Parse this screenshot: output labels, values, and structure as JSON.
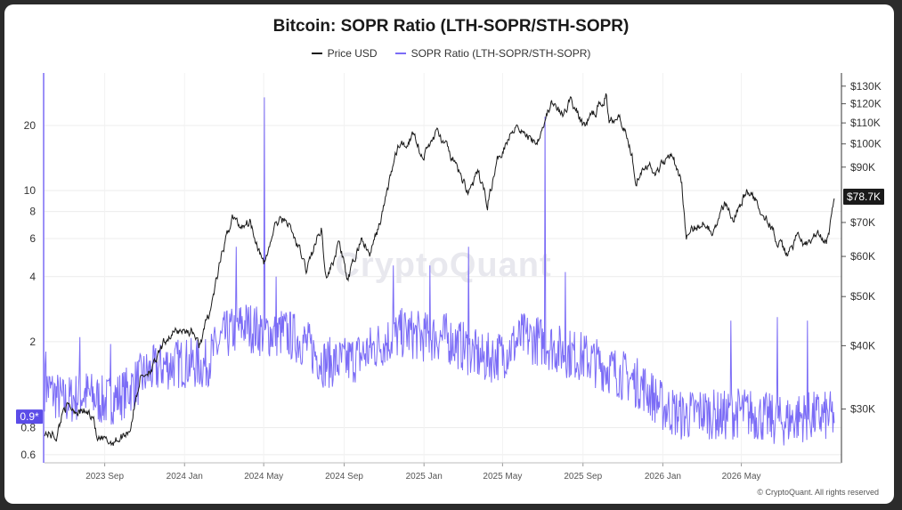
{
  "chart_data": {
    "type": "line",
    "title": "Bitcoin: SOPR Ratio (LTH-SOPR/STH-SOPR)",
    "legend": [
      "Price USD",
      "SOPR Ratio (LTH-SOPR/STH-SOPR)"
    ],
    "legend_position": "top-center",
    "grid": true,
    "left_axis": {
      "scale": "log",
      "range": [
        0.55,
        35
      ],
      "ticks": [
        "0.6",
        "0.8",
        "2",
        "4",
        "6",
        "8",
        "10",
        "20"
      ],
      "tick_values": [
        0.6,
        0.8,
        2,
        4,
        6,
        8,
        10,
        20
      ],
      "current_label": "0.9*",
      "current_value": 0.9
    },
    "right_axis": {
      "scale": "log",
      "range": [
        23500,
        138000
      ],
      "ticks": [
        "$30K",
        "$40K",
        "$50K",
        "$60K",
        "$70K",
        "$90K",
        "$100K",
        "$110K",
        "$120K",
        "$130K"
      ],
      "tick_values": [
        30000,
        40000,
        50000,
        60000,
        70000,
        90000,
        100000,
        110000,
        120000,
        130000
      ],
      "current_label": "$78.7K",
      "current_value": 78700
    },
    "x_axis": {
      "range": [
        "2023-06-01",
        "2026-10-01"
      ],
      "ticks": [
        "2023 Sep",
        "2024 Jan",
        "2024 May",
        "2024 Sep",
        "2025 Jan",
        "2025 May",
        "2025 Sep",
        "2026 Jan",
        "2026 May"
      ],
      "tick_dates": [
        "2023-09-01",
        "2024-01-01",
        "2024-05-01",
        "2024-09-01",
        "2025-01-01",
        "2025-05-01",
        "2025-09-01",
        "2026-01-01",
        "2026-05-01"
      ]
    },
    "series": [
      {
        "name": "Price USD",
        "axis": "right",
        "color": "#1a1a1a",
        "points": [
          [
            "2023-06-01",
            27000
          ],
          [
            "2023-06-20",
            26500
          ],
          [
            "2023-07-01",
            30500
          ],
          [
            "2023-07-20",
            29900
          ],
          [
            "2023-08-15",
            29200
          ],
          [
            "2023-08-20",
            26100
          ],
          [
            "2023-09-10",
            25800
          ],
          [
            "2023-09-25",
            26300
          ],
          [
            "2023-10-10",
            27500
          ],
          [
            "2023-10-25",
            34500
          ],
          [
            "2023-11-15",
            36500
          ],
          [
            "2023-12-05",
            41500
          ],
          [
            "2023-12-25",
            43000
          ],
          [
            "2024-01-15",
            42500
          ],
          [
            "2024-01-23",
            39800
          ],
          [
            "2024-02-10",
            47500
          ],
          [
            "2024-02-28",
            61000
          ],
          [
            "2024-03-14",
            72000
          ],
          [
            "2024-03-25",
            69000
          ],
          [
            "2024-04-10",
            70500
          ],
          [
            "2024-04-20",
            64500
          ],
          [
            "2024-05-01",
            57500
          ],
          [
            "2024-05-20",
            70000
          ],
          [
            "2024-06-05",
            71000
          ],
          [
            "2024-06-25",
            61500
          ],
          [
            "2024-07-05",
            56500
          ],
          [
            "2024-07-28",
            68500
          ],
          [
            "2024-08-05",
            54000
          ],
          [
            "2024-08-25",
            64000
          ],
          [
            "2024-09-06",
            53500
          ],
          [
            "2024-09-28",
            65500
          ],
          [
            "2024-10-10",
            60000
          ],
          [
            "2024-10-29",
            72500
          ],
          [
            "2024-11-12",
            88000
          ],
          [
            "2024-11-22",
            98500
          ],
          [
            "2024-12-05",
            99500
          ],
          [
            "2024-12-17",
            106000
          ],
          [
            "2024-12-30",
            93500
          ],
          [
            "2025-01-20",
            106000
          ],
          [
            "2025-02-05",
            98000
          ],
          [
            "2025-02-25",
            87000
          ],
          [
            "2025-03-10",
            80500
          ],
          [
            "2025-03-25",
            87500
          ],
          [
            "2025-04-08",
            76500
          ],
          [
            "2025-04-25",
            94500
          ],
          [
            "2025-05-22",
            110000
          ],
          [
            "2025-06-05",
            104000
          ],
          [
            "2025-06-22",
            101000
          ],
          [
            "2025-07-14",
            120000
          ],
          [
            "2025-08-02",
            113500
          ],
          [
            "2025-08-13",
            123500
          ],
          [
            "2025-09-01",
            108500
          ],
          [
            "2025-09-20",
            116000
          ],
          [
            "2025-10-06",
            124500
          ],
          [
            "2025-10-11",
            111500
          ],
          [
            "2025-10-27",
            115000
          ],
          [
            "2025-11-15",
            95000
          ],
          [
            "2025-11-21",
            85000
          ],
          [
            "2025-12-05",
            92000
          ],
          [
            "2025-12-20",
            87500
          ],
          [
            "2026-01-14",
            97000
          ],
          [
            "2026-01-30",
            83000
          ],
          [
            "2026-02-06",
            65000
          ],
          [
            "2026-02-20",
            68500
          ],
          [
            "2026-03-05",
            70500
          ],
          [
            "2026-03-20",
            67000
          ],
          [
            "2026-04-05",
            76000
          ],
          [
            "2026-04-20",
            72000
          ],
          [
            "2026-05-10",
            81000
          ],
          [
            "2026-05-25",
            76500
          ],
          [
            "2026-06-10",
            71000
          ],
          [
            "2026-06-25",
            64000
          ],
          [
            "2026-07-10",
            60500
          ],
          [
            "2026-07-25",
            65500
          ],
          [
            "2026-08-10",
            63000
          ],
          [
            "2026-08-25",
            66500
          ],
          [
            "2026-09-05",
            63500
          ],
          [
            "2026-09-12",
            65500
          ],
          [
            "2026-09-20",
            78700
          ]
        ]
      },
      {
        "name": "SOPR Ratio (LTH-SOPR/STH-SOPR)",
        "axis": "left",
        "color": "#7b6cf6",
        "points": [
          [
            "2023-06-01",
            1.25
          ],
          [
            "2023-07-01",
            1.05
          ],
          [
            "2023-08-01",
            1.15
          ],
          [
            "2023-09-01",
            1.05
          ],
          [
            "2023-10-01",
            1.15
          ],
          [
            "2023-11-01",
            1.4
          ],
          [
            "2023-12-01",
            1.55
          ],
          [
            "2024-01-01",
            1.6
          ],
          [
            "2024-02-01",
            1.55
          ],
          [
            "2024-03-01",
            2.1
          ],
          [
            "2024-04-01",
            2.4
          ],
          [
            "2024-05-01",
            2.2
          ],
          [
            "2024-06-01",
            2.2
          ],
          [
            "2024-07-01",
            2.0
          ],
          [
            "2024-08-01",
            1.6
          ],
          [
            "2024-09-01",
            1.6
          ],
          [
            "2024-10-01",
            1.75
          ],
          [
            "2024-11-01",
            2.0
          ],
          [
            "2024-12-01",
            2.2
          ],
          [
            "2025-01-01",
            2.1
          ],
          [
            "2025-02-01",
            2.1
          ],
          [
            "2025-03-01",
            1.9
          ],
          [
            "2025-04-01",
            1.65
          ],
          [
            "2025-05-01",
            1.75
          ],
          [
            "2025-06-01",
            2.1
          ],
          [
            "2025-07-01",
            2.0
          ],
          [
            "2025-08-01",
            1.8
          ],
          [
            "2025-09-01",
            1.7
          ],
          [
            "2025-10-01",
            1.55
          ],
          [
            "2025-11-01",
            1.4
          ],
          [
            "2025-12-01",
            1.25
          ],
          [
            "2026-01-01",
            1.0
          ],
          [
            "2026-02-01",
            0.9
          ],
          [
            "2026-03-01",
            0.95
          ],
          [
            "2026-04-01",
            0.9
          ],
          [
            "2026-05-01",
            0.95
          ],
          [
            "2026-06-01",
            0.9
          ],
          [
            "2026-07-01",
            0.85
          ],
          [
            "2026-08-01",
            0.9
          ],
          [
            "2026-09-20",
            0.9
          ]
        ],
        "spikes": [
          [
            "2023-06-03",
            1.8
          ],
          [
            "2023-07-25",
            2.1
          ],
          [
            "2023-09-10",
            1.95
          ],
          [
            "2024-03-20",
            5.5
          ],
          [
            "2024-05-02",
            27.0
          ],
          [
            "2024-05-20",
            4.0
          ],
          [
            "2024-11-15",
            4.5
          ],
          [
            "2025-01-10",
            4.5
          ],
          [
            "2025-03-10",
            5.5
          ],
          [
            "2025-07-05",
            22.0
          ],
          [
            "2025-08-05",
            4.2
          ],
          [
            "2026-04-15",
            2.5
          ],
          [
            "2026-06-25",
            2.6
          ],
          [
            "2026-08-10",
            2.5
          ]
        ]
      }
    ]
  },
  "watermark": "CryptoQuant",
  "credit": "© CryptoQuant. All rights reserved"
}
